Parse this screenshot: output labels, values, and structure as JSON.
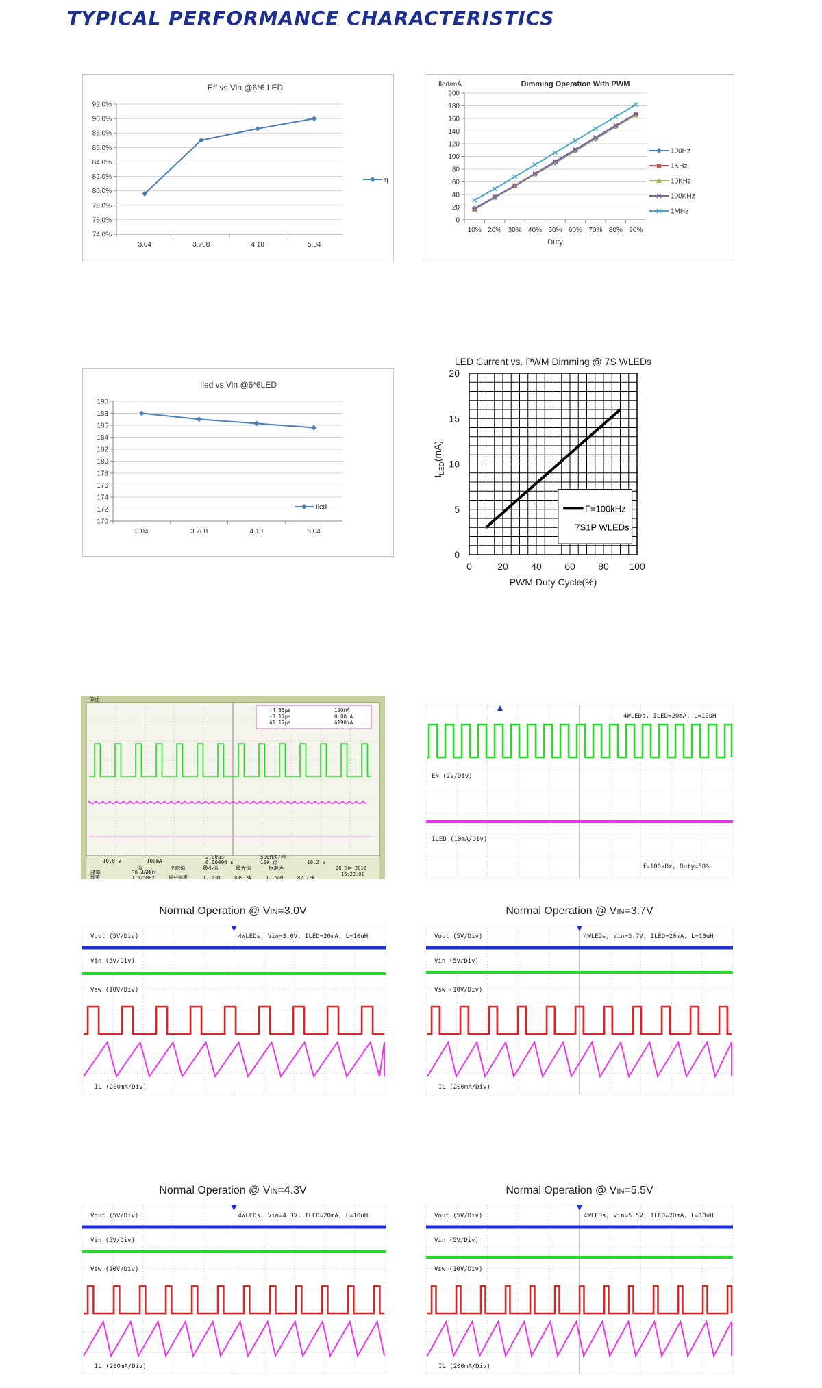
{
  "page_title": "TYPICAL PERFORMANCE CHARACTERISTICS",
  "chart_data": [
    {
      "type": "line",
      "title": "Eff  vs Vin @6*6 LED",
      "categories": [
        "3.04",
        "3.708",
        "4.18",
        "5.04"
      ],
      "series": [
        {
          "name": "η",
          "values": [
            79.6,
            87.0,
            88.6,
            90.0
          ],
          "color": "#4a7ebb"
        }
      ],
      "yticks": [
        "92.0%",
        "90.0%",
        "88.0%",
        "86.0%",
        "84.0%",
        "82.0%",
        "80.0%",
        "78.0%",
        "76.0%",
        "74.0%"
      ],
      "ylim": [
        74,
        92
      ],
      "grid": true,
      "legend": "right"
    },
    {
      "type": "line",
      "title": "Dimming Operation With PWM",
      "ylabel": "Iled/mA",
      "xlabel": "Duty",
      "categories": [
        "10%",
        "20%",
        "30%",
        "40%",
        "50%",
        "60%",
        "70%",
        "80%",
        "90%"
      ],
      "series": [
        {
          "name": "100Hz",
          "values": [
            18,
            36,
            54,
            72,
            90,
            109,
            128,
            147,
            166
          ],
          "color": "#4a7ebb"
        },
        {
          "name": "1KHz",
          "values": [
            17,
            35,
            54,
            72,
            91,
            110,
            129,
            148,
            166
          ],
          "color": "#be4b48"
        },
        {
          "name": "10KHz",
          "values": [
            16,
            35,
            53,
            72,
            91,
            110,
            129,
            148,
            165
          ],
          "color": "#98b954"
        },
        {
          "name": "100KHz",
          "values": [
            17,
            36,
            54,
            73,
            92,
            111,
            130,
            149,
            167
          ],
          "color": "#7d60a0"
        },
        {
          "name": "1MHz",
          "values": [
            31,
            49,
            68,
            87,
            106,
            125,
            144,
            163,
            182
          ],
          "color": "#46aac5"
        }
      ],
      "yticks": [
        "200",
        "180",
        "160",
        "140",
        "120",
        "100",
        "80",
        "60",
        "40",
        "20",
        "0"
      ],
      "ylim": [
        0,
        200
      ],
      "grid": true,
      "legend": "right"
    },
    {
      "type": "line",
      "title": "Iled vs Vin @6*6LED",
      "categories": [
        "3.04",
        "3.708",
        "4.18",
        "5.04"
      ],
      "series": [
        {
          "name": "Iled",
          "values": [
            188,
            187,
            186.3,
            185.6
          ],
          "color": "#4a7ebb"
        }
      ],
      "yticks": [
        "190",
        "188",
        "186",
        "184",
        "182",
        "180",
        "178",
        "176",
        "174",
        "172",
        "170"
      ],
      "ylim": [
        170,
        190
      ],
      "grid": true,
      "legend": "bottom-right"
    },
    {
      "type": "line",
      "title": "LED Current vs. PWM Dimming @ 7S WLEDs",
      "ylabel": "I",
      "ylabel_sub": "LED",
      "ylabel_unit": "(mA)",
      "xlabel": "PWM Duty Cycle(%)",
      "x": [
        10,
        90
      ],
      "series": [
        {
          "name": "F=100kHz",
          "values": [
            3,
            16
          ],
          "color": "#000000"
        }
      ],
      "legend_note": "7S1P WLEDs",
      "xticks": [
        "0",
        "20",
        "40",
        "60",
        "80",
        "100"
      ],
      "yticks": [
        "20",
        "15",
        "10",
        "5",
        "0"
      ],
      "xlim": [
        0,
        100
      ],
      "ylim": [
        0,
        20
      ],
      "grid": true,
      "legend": "bottom-right"
    }
  ],
  "scope1": {
    "top_label": "停止",
    "cursor": {
      "dt1": "-4.35µs",
      "dt2": "-3.17µs",
      "delta_t": "Δ1.17µs",
      "v1": "190mA",
      "v2": "0.00 A",
      "delta_v": "Δ190mA"
    },
    "ch1": "10.0 V",
    "ch4": "100mA",
    "timebase": "2.00µs",
    "trigger_pos": "0.00000 s",
    "sample_rate": "500M次/秒",
    "points": "10k 点",
    "trig_level": "10.2 V",
    "date": "28 8月  2012",
    "time": "16:23:01",
    "meas_headers": [
      "值",
      "平均值",
      "最小值",
      "最大值",
      "标准差"
    ],
    "meas_row1_label": "频率",
    "meas_row1_value": "38.46MHz",
    "meas_row2_label": "频率",
    "meas_row2_value": "1.615MHz",
    "meas_row2_extra": "低分辨率",
    "meas_row2_mean": "1.113M",
    "meas_row2_min": "889.3k",
    "meas_row2_max": "1.154M",
    "meas_row2_std": "82.22k"
  },
  "scope2": {
    "info": "4WLEDs, ILED=20mA, L=10uH",
    "en_label": "EN  (2V/Div)",
    "iled_label": "ILED  (10mA/Div)",
    "footer": "f=100kHz, Duty=50%"
  },
  "normal_ops": [
    {
      "title_prefix": "Normal Operation @ V",
      "title_sub": "IN",
      "title_value": "=3.0V",
      "info": "4WLEDs, Vin=3.0V, ILED=20mA, L=10uH"
    },
    {
      "title_prefix": "Normal Operation @ V",
      "title_sub": "IN",
      "title_value": "=3.7V",
      "info": "4WLEDs, Vin=3.7V, ILED=20mA, L=10uH"
    },
    {
      "title_prefix": "Normal Operation @ V",
      "title_sub": "IN",
      "title_value": "=4.3V",
      "info": "4WLEDs, Vin=4.3V, ILED=20mA, L=10uH"
    },
    {
      "title_prefix": "Normal Operation @ V",
      "title_sub": "IN",
      "title_value": "=5.5V",
      "info": "4WLEDs, Vin=5.5V, ILED=20mA, L=10uH"
    }
  ],
  "channel_labels": {
    "vout": "Vout  (5V/Div)",
    "vin": "Vin  (5V/Div)",
    "vsw": "Vsw  (10V/Div)",
    "il": "IL  (200mA/Div)"
  },
  "colors": {
    "title": "#1d2f8f",
    "blue": "#1f2fd6",
    "green": "#22dd22",
    "red": "#ee1c1c",
    "magenta": "#ee33ee"
  }
}
